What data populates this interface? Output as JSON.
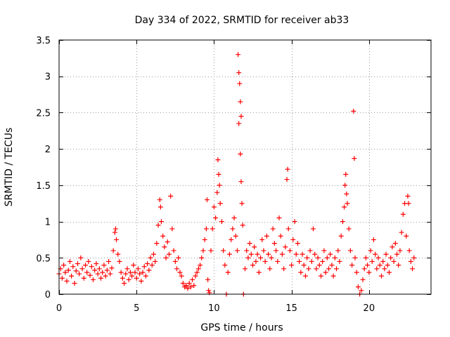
{
  "chart_data": {
    "type": "scatter",
    "title": "Day 334 of 2022, SRMTID for receiver ab33",
    "xlabel": "GPS time / hours",
    "ylabel": "SRMTID / TECUs",
    "xlim": [
      0,
      24.0
    ],
    "ylim": [
      0,
      3.5
    ],
    "xticks": [
      0,
      5,
      10,
      15,
      20
    ],
    "yticks": [
      0,
      0.5,
      1,
      1.5,
      2,
      2.5,
      3,
      3.5
    ],
    "xtick_labels": [
      "0",
      "5",
      "10",
      "15",
      "20"
    ],
    "ytick_labels": [
      "0",
      "0.5",
      "1",
      "1.5",
      "2",
      "2.5",
      "3",
      "3.5"
    ],
    "grid": true,
    "marker": "+",
    "series": [
      {
        "name": "SRMTID",
        "color": "#ff0000",
        "points": [
          [
            0.0,
            0.28
          ],
          [
            0.1,
            0.35
          ],
          [
            0.2,
            0.22
          ],
          [
            0.3,
            0.4
          ],
          [
            0.4,
            0.3
          ],
          [
            0.5,
            0.18
          ],
          [
            0.6,
            0.33
          ],
          [
            0.7,
            0.45
          ],
          [
            0.8,
            0.25
          ],
          [
            0.9,
            0.38
          ],
          [
            1.0,
            0.15
          ],
          [
            1.1,
            0.32
          ],
          [
            1.2,
            0.42
          ],
          [
            1.3,
            0.28
          ],
          [
            1.4,
            0.5
          ],
          [
            1.5,
            0.35
          ],
          [
            1.6,
            0.22
          ],
          [
            1.7,
            0.4
          ],
          [
            1.8,
            0.3
          ],
          [
            1.9,
            0.45
          ],
          [
            2.0,
            0.26
          ],
          [
            2.1,
            0.38
          ],
          [
            2.2,
            0.2
          ],
          [
            2.3,
            0.33
          ],
          [
            2.4,
            0.42
          ],
          [
            2.5,
            0.28
          ],
          [
            2.6,
            0.35
          ],
          [
            2.7,
            0.22
          ],
          [
            2.8,
            0.3
          ],
          [
            2.9,
            0.4
          ],
          [
            3.0,
            0.25
          ],
          [
            3.1,
            0.33
          ],
          [
            3.2,
            0.45
          ],
          [
            3.3,
            0.28
          ],
          [
            3.4,
            0.36
          ],
          [
            3.5,
            0.6
          ],
          [
            3.6,
            0.85
          ],
          [
            3.65,
            0.9
          ],
          [
            3.7,
            0.75
          ],
          [
            3.8,
            0.55
          ],
          [
            3.9,
            0.45
          ],
          [
            4.0,
            0.3
          ],
          [
            4.1,
            0.22
          ],
          [
            4.2,
            0.15
          ],
          [
            4.3,
            0.28
          ],
          [
            4.4,
            0.35
          ],
          [
            4.5,
            0.2
          ],
          [
            4.6,
            0.3
          ],
          [
            4.7,
            0.25
          ],
          [
            4.8,
            0.4
          ],
          [
            4.9,
            0.3
          ],
          [
            5.0,
            0.22
          ],
          [
            5.1,
            0.35
          ],
          [
            5.2,
            0.28
          ],
          [
            5.3,
            0.18
          ],
          [
            5.4,
            0.3
          ],
          [
            5.5,
            0.38
          ],
          [
            5.6,
            0.25
          ],
          [
            5.7,
            0.42
          ],
          [
            5.8,
            0.33
          ],
          [
            5.9,
            0.5
          ],
          [
            6.0,
            0.4
          ],
          [
            6.1,
            0.55
          ],
          [
            6.2,
            0.45
          ],
          [
            6.3,
            0.7
          ],
          [
            6.4,
            0.95
          ],
          [
            6.5,
            1.3
          ],
          [
            6.55,
            1.2
          ],
          [
            6.6,
            1.0
          ],
          [
            6.7,
            0.8
          ],
          [
            6.8,
            0.65
          ],
          [
            6.9,
            0.5
          ],
          [
            7.0,
            0.72
          ],
          [
            7.1,
            0.55
          ],
          [
            7.2,
            1.35
          ],
          [
            7.3,
            0.9
          ],
          [
            7.4,
            0.6
          ],
          [
            7.5,
            0.45
          ],
          [
            7.6,
            0.35
          ],
          [
            7.7,
            0.5
          ],
          [
            7.8,
            0.3
          ],
          [
            7.9,
            0.25
          ],
          [
            8.0,
            0.15
          ],
          [
            8.1,
            0.1
          ],
          [
            8.2,
            0.12
          ],
          [
            8.3,
            0.08
          ],
          [
            8.4,
            0.15
          ],
          [
            8.5,
            0.1
          ],
          [
            8.6,
            0.2
          ],
          [
            8.7,
            0.12
          ],
          [
            8.8,
            0.25
          ],
          [
            8.9,
            0.3
          ],
          [
            9.0,
            0.35
          ],
          [
            9.1,
            0.4
          ],
          [
            9.2,
            0.5
          ],
          [
            9.3,
            0.6
          ],
          [
            9.4,
            0.75
          ],
          [
            9.5,
            0.9
          ],
          [
            9.55,
            1.3
          ],
          [
            9.6,
            0.2
          ],
          [
            9.65,
            0.05
          ],
          [
            9.7,
            0.02
          ],
          [
            9.8,
            0.6
          ],
          [
            9.9,
            0.9
          ],
          [
            10.0,
            1.2
          ],
          [
            10.1,
            1.05
          ],
          [
            10.2,
            1.4
          ],
          [
            10.25,
            1.85
          ],
          [
            10.3,
            1.65
          ],
          [
            10.35,
            1.5
          ],
          [
            10.4,
            1.25
          ],
          [
            10.5,
            1.0
          ],
          [
            10.6,
            0.6
          ],
          [
            10.7,
            0.4
          ],
          [
            10.8,
            0.0
          ],
          [
            10.9,
            0.3
          ],
          [
            11.0,
            0.55
          ],
          [
            11.1,
            0.75
          ],
          [
            11.2,
            0.9
          ],
          [
            11.3,
            1.05
          ],
          [
            11.4,
            0.8
          ],
          [
            11.5,
            0.6
          ],
          [
            11.55,
            3.3
          ],
          [
            11.6,
            3.05
          ],
          [
            11.65,
            2.9
          ],
          [
            11.7,
            2.65
          ],
          [
            11.75,
            2.45
          ],
          [
            11.6,
            2.35
          ],
          [
            11.7,
            1.93
          ],
          [
            11.75,
            1.55
          ],
          [
            11.8,
            1.25
          ],
          [
            11.85,
            0.95
          ],
          [
            11.9,
            0.0
          ],
          [
            12.0,
            0.35
          ],
          [
            12.1,
            0.6
          ],
          [
            12.2,
            0.5
          ],
          [
            12.3,
            0.7
          ],
          [
            12.4,
            0.55
          ],
          [
            12.5,
            0.4
          ],
          [
            12.6,
            0.65
          ],
          [
            12.7,
            0.45
          ],
          [
            12.8,
            0.55
          ],
          [
            12.9,
            0.3
          ],
          [
            13.0,
            0.5
          ],
          [
            13.1,
            0.75
          ],
          [
            13.2,
            0.6
          ],
          [
            13.3,
            0.45
          ],
          [
            13.4,
            0.8
          ],
          [
            13.5,
            0.55
          ],
          [
            13.6,
            0.35
          ],
          [
            13.7,
            0.5
          ],
          [
            13.8,
            0.9
          ],
          [
            13.9,
            0.7
          ],
          [
            14.0,
            0.6
          ],
          [
            14.1,
            0.45
          ],
          [
            14.2,
            1.05
          ],
          [
            14.3,
            0.8
          ],
          [
            14.4,
            0.55
          ],
          [
            14.5,
            0.35
          ],
          [
            14.6,
            0.65
          ],
          [
            14.7,
            1.58
          ],
          [
            14.75,
            1.72
          ],
          [
            14.8,
            0.9
          ],
          [
            14.9,
            0.6
          ],
          [
            15.0,
            0.4
          ],
          [
            15.1,
            0.75
          ],
          [
            15.2,
            1.0
          ],
          [
            15.3,
            0.55
          ],
          [
            15.4,
            0.7
          ],
          [
            15.5,
            0.45
          ],
          [
            15.6,
            0.3
          ],
          [
            15.7,
            0.55
          ],
          [
            15.8,
            0.4
          ],
          [
            15.9,
            0.25
          ],
          [
            16.0,
            0.5
          ],
          [
            16.1,
            0.35
          ],
          [
            16.2,
            0.6
          ],
          [
            16.3,
            0.45
          ],
          [
            16.4,
            0.9
          ],
          [
            16.5,
            0.55
          ],
          [
            16.6,
            0.35
          ],
          [
            16.7,
            0.5
          ],
          [
            16.8,
            0.4
          ],
          [
            16.9,
            0.25
          ],
          [
            17.0,
            0.45
          ],
          [
            17.1,
            0.6
          ],
          [
            17.2,
            0.3
          ],
          [
            17.3,
            0.5
          ],
          [
            17.4,
            0.35
          ],
          [
            17.5,
            0.55
          ],
          [
            17.6,
            0.4
          ],
          [
            17.7,
            0.25
          ],
          [
            17.8,
            0.5
          ],
          [
            17.9,
            0.35
          ],
          [
            18.0,
            0.6
          ],
          [
            18.1,
            0.45
          ],
          [
            18.2,
            0.8
          ],
          [
            18.3,
            1.0
          ],
          [
            18.4,
            1.2
          ],
          [
            18.45,
            1.5
          ],
          [
            18.5,
            1.65
          ],
          [
            18.55,
            1.38
          ],
          [
            18.6,
            1.25
          ],
          [
            18.7,
            0.9
          ],
          [
            18.8,
            0.6
          ],
          [
            18.9,
            0.4
          ],
          [
            19.0,
            2.52
          ],
          [
            19.05,
            1.87
          ],
          [
            19.1,
            0.5
          ],
          [
            19.2,
            0.3
          ],
          [
            19.3,
            0.1
          ],
          [
            19.4,
            0.0
          ],
          [
            19.5,
            0.05
          ],
          [
            19.6,
            0.2
          ],
          [
            19.7,
            0.35
          ],
          [
            19.8,
            0.5
          ],
          [
            19.9,
            0.4
          ],
          [
            20.0,
            0.3
          ],
          [
            20.1,
            0.6
          ],
          [
            20.2,
            0.45
          ],
          [
            20.3,
            0.75
          ],
          [
            20.4,
            0.55
          ],
          [
            20.5,
            0.35
          ],
          [
            20.6,
            0.5
          ],
          [
            20.7,
            0.4
          ],
          [
            20.8,
            0.25
          ],
          [
            20.9,
            0.45
          ],
          [
            21.0,
            0.35
          ],
          [
            21.1,
            0.55
          ],
          [
            21.2,
            0.4
          ],
          [
            21.3,
            0.3
          ],
          [
            21.4,
            0.5
          ],
          [
            21.5,
            0.65
          ],
          [
            21.6,
            0.45
          ],
          [
            21.7,
            0.7
          ],
          [
            21.8,
            0.55
          ],
          [
            21.9,
            0.4
          ],
          [
            22.0,
            0.6
          ],
          [
            22.1,
            0.85
          ],
          [
            22.2,
            1.1
          ],
          [
            22.3,
            1.25
          ],
          [
            22.4,
            0.8
          ],
          [
            22.5,
            1.35
          ],
          [
            22.55,
            1.25
          ],
          [
            22.6,
            0.6
          ],
          [
            22.7,
            0.45
          ],
          [
            22.8,
            0.35
          ],
          [
            22.9,
            0.5
          ]
        ]
      }
    ]
  }
}
